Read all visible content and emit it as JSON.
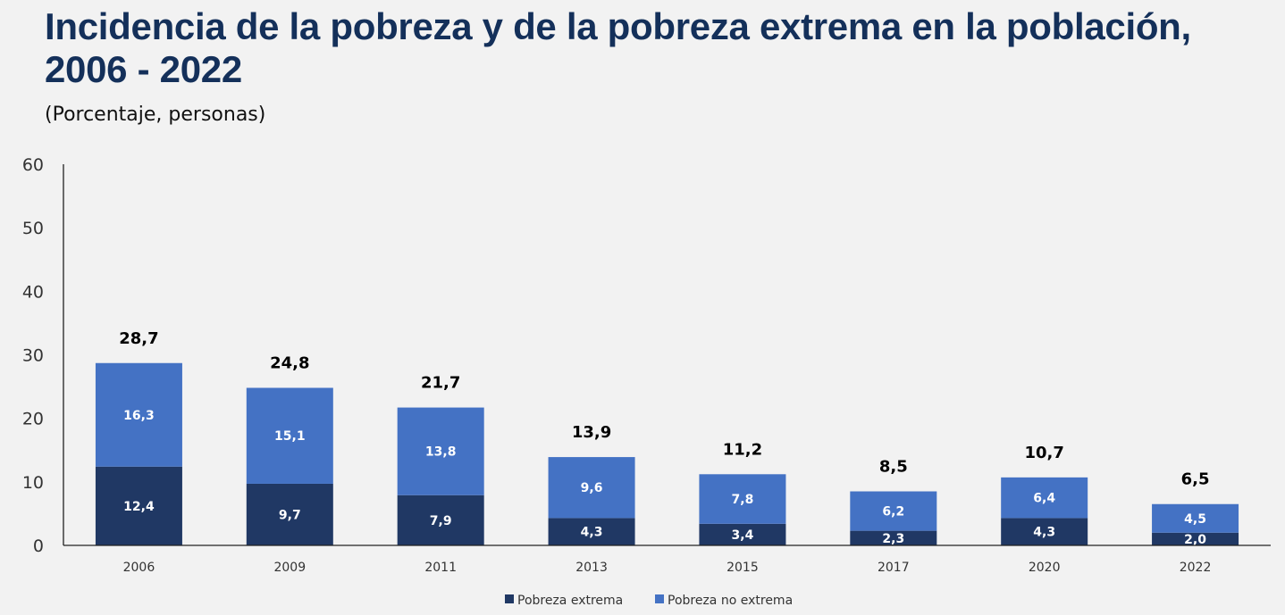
{
  "chart_data": {
    "type": "bar",
    "stacked": true,
    "title_line1": "Incidencia de la pobreza y de la pobreza extrema en la población,",
    "title_line2": "2006 - 2022",
    "subtitle": "(Porcentaje, personas)",
    "categories": [
      "2006",
      "2009",
      "2011",
      "2013",
      "2015",
      "2017",
      "2020",
      "2022"
    ],
    "series": [
      {
        "name": "Pobreza extrema",
        "color": "#203864",
        "values": [
          12.4,
          9.7,
          7.9,
          4.3,
          3.4,
          2.3,
          4.3,
          2.0
        ],
        "labels": [
          "12,4",
          "9,7",
          "7,9",
          "4,3",
          "3,4",
          "2,3",
          "4,3",
          "2,0"
        ]
      },
      {
        "name": "Pobreza no extrema",
        "color": "#4472c4",
        "values": [
          16.3,
          15.1,
          13.8,
          9.6,
          7.8,
          6.2,
          6.4,
          4.5
        ],
        "labels": [
          "16,3",
          "15,1",
          "13,8",
          "9,6",
          "7,8",
          "6,2",
          "6,4",
          "4,5"
        ]
      }
    ],
    "totals": [
      28.7,
      24.8,
      21.7,
      13.9,
      11.2,
      8.5,
      10.7,
      6.5
    ],
    "total_labels": [
      "28,7",
      "24,8",
      "21,7",
      "13,9",
      "11,2",
      "8,5",
      "10,7",
      "6,5"
    ],
    "ylim": [
      0,
      60
    ],
    "yticks": [
      "0",
      "10",
      "20",
      "30",
      "40",
      "50",
      "60"
    ],
    "grid": false,
    "legend_position": "bottom"
  }
}
